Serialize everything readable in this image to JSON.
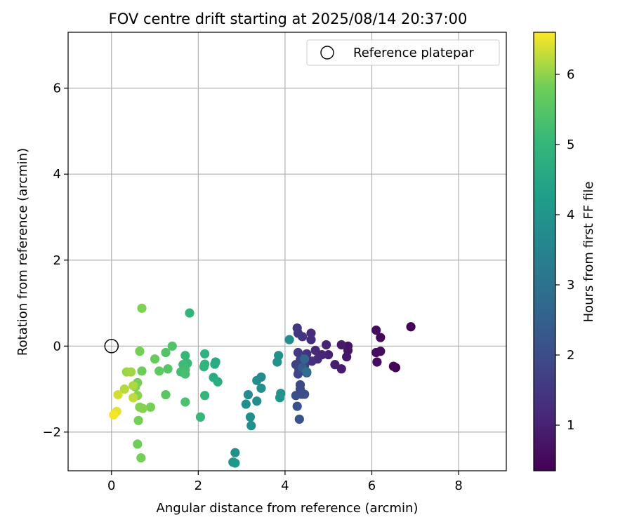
{
  "chart_data": {
    "type": "scatter",
    "title": "FOV centre drift starting at 2025/08/14 20:37:00",
    "xlabel": "Angular distance from reference (arcmin)",
    "ylabel": "Rotation from reference (arcmin)",
    "xlim": [
      -1.0,
      9.1
    ],
    "ylim": [
      -2.9,
      7.3
    ],
    "xticks": [
      0,
      2,
      4,
      6,
      8
    ],
    "xtick_labels": [
      "0",
      "2",
      "4",
      "6",
      "8"
    ],
    "yticks": [
      -2,
      0,
      2,
      4,
      6
    ],
    "ytick_labels": [
      "−2",
      "0",
      "2",
      "4",
      "6"
    ],
    "grid": true,
    "legend": {
      "placement": "top-right",
      "entries": [
        "Reference platepar"
      ]
    },
    "reference_point": {
      "x": 0,
      "y": 0,
      "marker": "open-circle"
    },
    "colorbar": {
      "label": "Hours from first FF file",
      "colormap": "viridis",
      "range": [
        0.35,
        6.6
      ],
      "ticks": [
        1,
        2,
        3,
        4,
        5,
        6
      ],
      "tick_labels": [
        "1",
        "2",
        "3",
        "4",
        "5",
        "6"
      ]
    },
    "points": [
      {
        "x": 6.9,
        "y": 0.45,
        "h": 0.4
      },
      {
        "x": 6.55,
        "y": -0.5,
        "h": 0.4
      },
      {
        "x": 6.5,
        "y": -0.47,
        "h": 0.45
      },
      {
        "x": 6.2,
        "y": 0.2,
        "h": 0.5
      },
      {
        "x": 6.1,
        "y": 0.37,
        "h": 0.55
      },
      {
        "x": 6.2,
        "y": -0.12,
        "h": 0.55
      },
      {
        "x": 6.1,
        "y": -0.15,
        "h": 0.6
      },
      {
        "x": 6.12,
        "y": -0.37,
        "h": 0.6
      },
      {
        "x": 5.45,
        "y": 0.0,
        "h": 0.7
      },
      {
        "x": 5.45,
        "y": -0.1,
        "h": 0.75
      },
      {
        "x": 5.42,
        "y": -0.25,
        "h": 0.8
      },
      {
        "x": 5.3,
        "y": 0.03,
        "h": 0.85
      },
      {
        "x": 5.3,
        "y": -0.53,
        "h": 0.9
      },
      {
        "x": 5.15,
        "y": -0.43,
        "h": 0.95
      },
      {
        "x": 5.0,
        "y": -0.2,
        "h": 1.0
      },
      {
        "x": 4.95,
        "y": 0.03,
        "h": 1.05
      },
      {
        "x": 4.85,
        "y": -0.2,
        "h": 1.1
      },
      {
        "x": 4.7,
        "y": -0.1,
        "h": 1.15
      },
      {
        "x": 4.75,
        "y": -0.3,
        "h": 1.2
      },
      {
        "x": 4.6,
        "y": 0.3,
        "h": 1.2
      },
      {
        "x": 4.6,
        "y": 0.15,
        "h": 1.25
      },
      {
        "x": 4.62,
        "y": -0.35,
        "h": 1.3
      },
      {
        "x": 4.5,
        "y": -0.18,
        "h": 1.35
      },
      {
        "x": 4.4,
        "y": 0.22,
        "h": 1.4
      },
      {
        "x": 4.3,
        "y": 0.3,
        "h": 1.45
      },
      {
        "x": 4.28,
        "y": 0.42,
        "h": 1.5
      },
      {
        "x": 4.3,
        "y": -0.15,
        "h": 1.55
      },
      {
        "x": 4.5,
        "y": -0.62,
        "h": 1.6
      },
      {
        "x": 4.45,
        "y": -0.45,
        "h": 1.65
      },
      {
        "x": 4.35,
        "y": -0.32,
        "h": 1.7
      },
      {
        "x": 4.25,
        "y": -0.43,
        "h": 1.75
      },
      {
        "x": 4.32,
        "y": -0.55,
        "h": 1.8
      },
      {
        "x": 4.3,
        "y": -0.65,
        "h": 1.85
      },
      {
        "x": 4.35,
        "y": -0.9,
        "h": 1.9
      },
      {
        "x": 4.35,
        "y": -1.0,
        "h": 1.95
      },
      {
        "x": 4.38,
        "y": -1.12,
        "h": 2.0
      },
      {
        "x": 4.45,
        "y": -1.12,
        "h": 2.05
      },
      {
        "x": 4.25,
        "y": -1.15,
        "h": 2.1
      },
      {
        "x": 4.28,
        "y": -1.4,
        "h": 2.15
      },
      {
        "x": 4.33,
        "y": -1.7,
        "h": 2.2
      },
      {
        "x": 4.4,
        "y": -0.5,
        "h": 2.4
      },
      {
        "x": 4.45,
        "y": -0.3,
        "h": 2.6
      },
      {
        "x": 4.5,
        "y": -0.6,
        "h": 2.9
      },
      {
        "x": 4.1,
        "y": 0.15,
        "h": 3.8
      },
      {
        "x": 3.85,
        "y": -0.22,
        "h": 3.9
      },
      {
        "x": 3.82,
        "y": -0.37,
        "h": 3.95
      },
      {
        "x": 3.9,
        "y": -1.1,
        "h": 3.95
      },
      {
        "x": 3.88,
        "y": -1.2,
        "h": 4.0
      },
      {
        "x": 3.45,
        "y": -0.72,
        "h": 3.7
      },
      {
        "x": 3.35,
        "y": -0.8,
        "h": 3.75
      },
      {
        "x": 3.45,
        "y": -0.98,
        "h": 3.8
      },
      {
        "x": 3.35,
        "y": -1.28,
        "h": 3.85
      },
      {
        "x": 3.15,
        "y": -1.13,
        "h": 3.75
      },
      {
        "x": 3.1,
        "y": -1.35,
        "h": 3.8
      },
      {
        "x": 3.2,
        "y": -1.65,
        "h": 3.85
      },
      {
        "x": 3.22,
        "y": -1.85,
        "h": 3.9
      },
      {
        "x": 2.85,
        "y": -2.48,
        "h": 3.9
      },
      {
        "x": 2.8,
        "y": -2.7,
        "h": 4.0
      },
      {
        "x": 2.85,
        "y": -2.72,
        "h": 4.05
      },
      {
        "x": 2.4,
        "y": -0.37,
        "h": 4.6
      },
      {
        "x": 2.38,
        "y": -0.42,
        "h": 4.65
      },
      {
        "x": 2.35,
        "y": -0.73,
        "h": 4.7
      },
      {
        "x": 2.45,
        "y": -0.83,
        "h": 4.75
      },
      {
        "x": 2.15,
        "y": -0.18,
        "h": 4.85
      },
      {
        "x": 2.15,
        "y": -0.42,
        "h": 4.9
      },
      {
        "x": 2.13,
        "y": -0.48,
        "h": 4.95
      },
      {
        "x": 2.15,
        "y": -1.15,
        "h": 5.0
      },
      {
        "x": 2.05,
        "y": -1.65,
        "h": 5.05
      },
      {
        "x": 1.8,
        "y": 0.77,
        "h": 4.95
      },
      {
        "x": 1.7,
        "y": -0.22,
        "h": 5.05
      },
      {
        "x": 1.75,
        "y": -0.4,
        "h": 5.1
      },
      {
        "x": 1.65,
        "y": -0.43,
        "h": 5.15
      },
      {
        "x": 1.7,
        "y": -0.55,
        "h": 5.2
      },
      {
        "x": 1.6,
        "y": -0.6,
        "h": 5.25
      },
      {
        "x": 1.7,
        "y": -0.65,
        "h": 5.3
      },
      {
        "x": 1.7,
        "y": -1.3,
        "h": 5.35
      },
      {
        "x": 1.4,
        "y": 0.0,
        "h": 5.4
      },
      {
        "x": 1.25,
        "y": -0.15,
        "h": 5.45
      },
      {
        "x": 1.3,
        "y": -0.53,
        "h": 5.5
      },
      {
        "x": 1.25,
        "y": -1.13,
        "h": 5.55
      },
      {
        "x": 1.1,
        "y": -0.58,
        "h": 5.6
      },
      {
        "x": 1.0,
        "y": -0.3,
        "h": 5.7
      },
      {
        "x": 0.7,
        "y": 0.88,
        "h": 5.9
      },
      {
        "x": 0.65,
        "y": -0.12,
        "h": 5.85
      },
      {
        "x": 0.7,
        "y": -0.58,
        "h": 5.8
      },
      {
        "x": 0.6,
        "y": -0.85,
        "h": 5.85
      },
      {
        "x": 0.55,
        "y": -0.95,
        "h": 5.9
      },
      {
        "x": 0.6,
        "y": -1.15,
        "h": 5.95
      },
      {
        "x": 0.9,
        "y": -1.42,
        "h": 5.85
      },
      {
        "x": 0.65,
        "y": -1.42,
        "h": 5.9
      },
      {
        "x": 0.72,
        "y": -1.45,
        "h": 5.95
      },
      {
        "x": 0.62,
        "y": -1.73,
        "h": 5.85
      },
      {
        "x": 0.6,
        "y": -2.28,
        "h": 5.8
      },
      {
        "x": 0.68,
        "y": -2.6,
        "h": 5.85
      },
      {
        "x": 0.35,
        "y": -0.6,
        "h": 6.05
      },
      {
        "x": 0.45,
        "y": -0.6,
        "h": 6.1
      },
      {
        "x": 0.5,
        "y": -0.92,
        "h": 6.15
      },
      {
        "x": 0.3,
        "y": -1.0,
        "h": 6.2
      },
      {
        "x": 0.5,
        "y": -1.2,
        "h": 6.25
      },
      {
        "x": 0.15,
        "y": -1.13,
        "h": 6.35
      },
      {
        "x": 0.12,
        "y": -1.52,
        "h": 6.45
      },
      {
        "x": 0.05,
        "y": -1.6,
        "h": 6.55
      }
    ]
  }
}
